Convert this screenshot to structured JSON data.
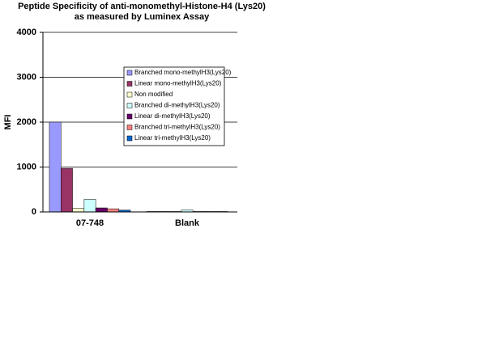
{
  "chart_data": {
    "type": "bar",
    "title": [
      "Peptide Specificity of anti-monomethyl-Histone-H4 (Lys20)",
      "as measured by Luminex Assay"
    ],
    "y_label": "MFI",
    "categories": [
      "07-748",
      "Blank"
    ],
    "series": [
      {
        "name": "Branched mono-methylH3(Lys20)",
        "color": "#9999ff",
        "values": [
          2000,
          10
        ]
      },
      {
        "name": "Linear mono-methylH3(Lys20)",
        "color": "#993366",
        "values": [
          970,
          10
        ]
      },
      {
        "name": "Non modified",
        "color": "#ffffcc",
        "values": [
          80,
          10
        ]
      },
      {
        "name": "Branched di-methylH3(Lys20)",
        "color": "#ccffff",
        "values": [
          280,
          40
        ]
      },
      {
        "name": "Linear di-methylH3(Lys20)",
        "color": "#660066",
        "values": [
          90,
          10
        ]
      },
      {
        "name": "Branched tri-methylH3(Lys20)",
        "color": "#ff8080",
        "values": [
          70,
          10
        ]
      },
      {
        "name": "Linear tri-methylH3(Lys20)",
        "color": "#0066cc",
        "values": [
          40,
          10
        ]
      }
    ],
    "ylim": [
      0,
      4000
    ],
    "yticks": [
      0,
      1000,
      2000,
      3000,
      4000
    ],
    "grid": true,
    "legend": "right"
  }
}
